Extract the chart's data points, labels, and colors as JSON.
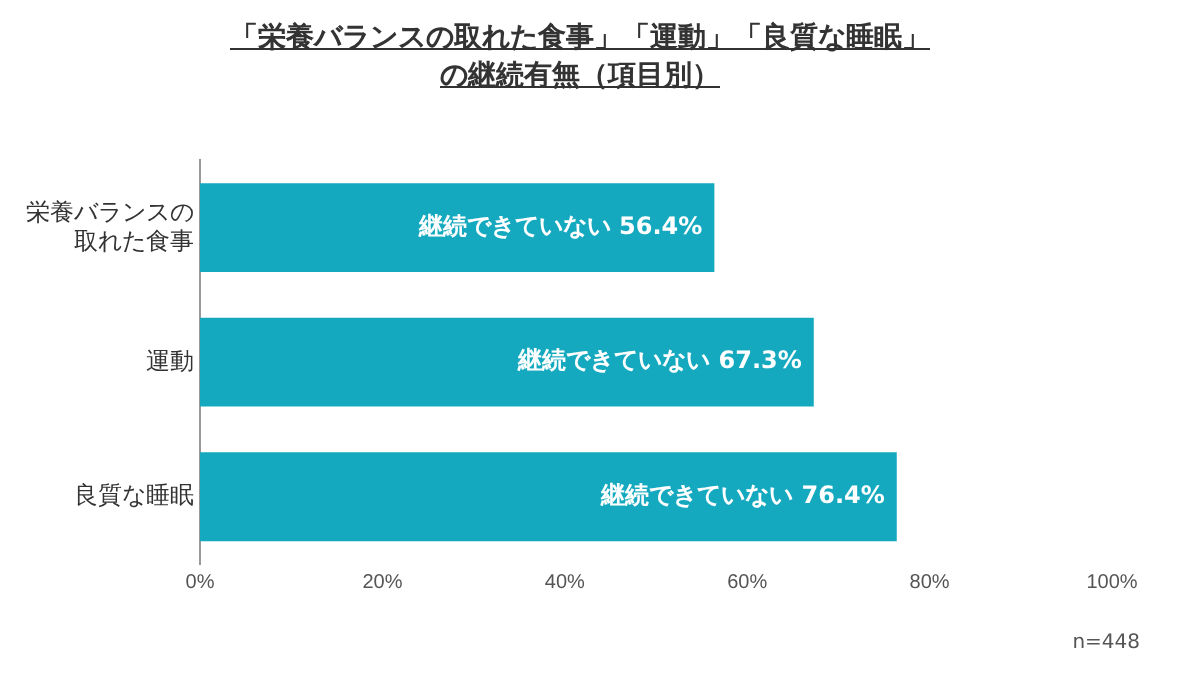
{
  "chart_data": {
    "type": "bar",
    "orientation": "horizontal",
    "title": "「栄養バランスの取れた食事」「運動」「良質な睡眠」の継続有無（項目別）",
    "categories": [
      "栄養バランスの取れた食事",
      "運動",
      "良質な睡眠"
    ],
    "values": [
      56.4,
      67.3,
      76.4
    ],
    "color": "#14a9bf",
    "value_labels": [
      "継続できていない 56.4%",
      "継続できていない 67.3%",
      "継続できていない 76.4%"
    ],
    "xlim": [
      0,
      100
    ],
    "xticks": [
      {
        "value": 0,
        "label": "0%"
      },
      {
        "value": 20,
        "label": "20%"
      },
      {
        "value": 40,
        "label": "40%"
      },
      {
        "value": 60,
        "label": "60%"
      },
      {
        "value": 80,
        "label": "80%"
      },
      {
        "value": 100,
        "label": "100%"
      }
    ],
    "grid": false,
    "legend": false,
    "annotations": [
      "n=448"
    ]
  }
}
